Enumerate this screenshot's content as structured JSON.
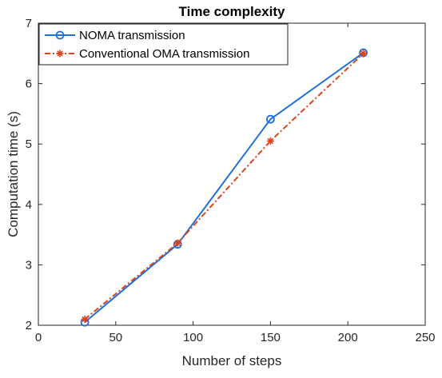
{
  "chart_data": {
    "type": "line",
    "title": "Time complexity",
    "xlabel": "Number of steps",
    "ylabel": "Computation time (s)",
    "xlim": [
      0,
      250
    ],
    "ylim": [
      2,
      7
    ],
    "xticks": [
      0,
      50,
      100,
      150,
      200,
      250
    ],
    "yticks": [
      2,
      3,
      4,
      5,
      6,
      7
    ],
    "grid": false,
    "legend_position": "top-left",
    "series": [
      {
        "name": "NOMA transmission",
        "color": "#1f6fdd",
        "marker": "circle",
        "line_style": "solid",
        "x": [
          30,
          90,
          150,
          210
        ],
        "y": [
          2.05,
          3.34,
          5.41,
          6.51
        ]
      },
      {
        "name": "Conventional OMA transmission",
        "color": "#d9441a",
        "marker": "asterisk",
        "line_style": "dash-dot",
        "x": [
          30,
          90,
          150,
          210
        ],
        "y": [
          2.1,
          3.36,
          5.05,
          6.5
        ]
      }
    ]
  }
}
